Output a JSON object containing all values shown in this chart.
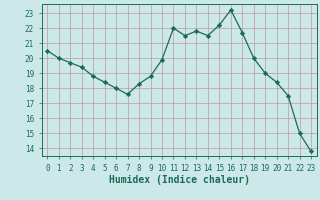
{
  "x": [
    0,
    1,
    2,
    3,
    4,
    5,
    6,
    7,
    8,
    9,
    10,
    11,
    12,
    13,
    14,
    15,
    16,
    17,
    18,
    19,
    20,
    21,
    22,
    23
  ],
  "y": [
    20.5,
    20.0,
    19.7,
    19.4,
    18.8,
    18.4,
    18.0,
    17.6,
    18.3,
    18.8,
    19.9,
    22.0,
    21.5,
    21.8,
    21.5,
    22.2,
    23.2,
    21.7,
    20.0,
    19.0,
    18.4,
    17.5,
    15.0,
    13.8
  ],
  "xlabel": "Humidex (Indice chaleur)",
  "xlim": [
    -0.5,
    23.5
  ],
  "ylim": [
    13.5,
    23.6
  ],
  "yticks": [
    14,
    15,
    16,
    17,
    18,
    19,
    20,
    21,
    22,
    23
  ],
  "xticks": [
    0,
    1,
    2,
    3,
    4,
    5,
    6,
    7,
    8,
    9,
    10,
    11,
    12,
    13,
    14,
    15,
    16,
    17,
    18,
    19,
    20,
    21,
    22,
    23
  ],
  "line_color": "#1a6b5a",
  "marker": "D",
  "marker_size": 2.2,
  "bg_color": "#cce8e8",
  "grid_color": "#c09898",
  "tick_color": "#1a6b5a",
  "label_color": "#1a6b5a",
  "spine_color": "#1a6b5a"
}
